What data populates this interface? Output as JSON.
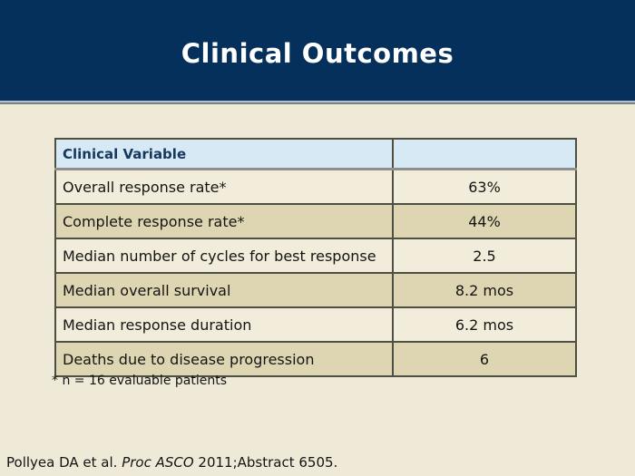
{
  "slide": {
    "title": "Clinical Outcomes"
  },
  "table": {
    "header": {
      "label": "Clinical Variable",
      "value": ""
    },
    "rows": [
      {
        "label": "Overall response rate*",
        "value": "63%"
      },
      {
        "label": "Complete response rate*",
        "value": "44%"
      },
      {
        "label": "Median number of cycles for best response",
        "value": "2.5"
      },
      {
        "label": "Median overall survival",
        "value": "8.2 mos"
      },
      {
        "label": "Median response duration",
        "value": "6.2 mos"
      },
      {
        "label": "Deaths due to disease progression",
        "value": "6"
      }
    ]
  },
  "footnote": "* n = 16 evaluable patients",
  "citation": {
    "prefix": "Pollyea DA et al. ",
    "italic": "Proc ASCO",
    "suffix": " 2011;Abstract 6505."
  },
  "colors": {
    "banner_navy": "#06305c",
    "banner_separator_light": "#aec1d2",
    "banner_separator_gray": "#7e7e7e",
    "slide_background": "#efe9d8",
    "header_row_blue": "#d6e9f5",
    "header_text_navy": "#16375e",
    "row_light": "#f2edda",
    "row_dark": "#ded6b2",
    "table_border": "#4f4e43",
    "title_text": "#ffffff",
    "body_text": "#141414"
  }
}
